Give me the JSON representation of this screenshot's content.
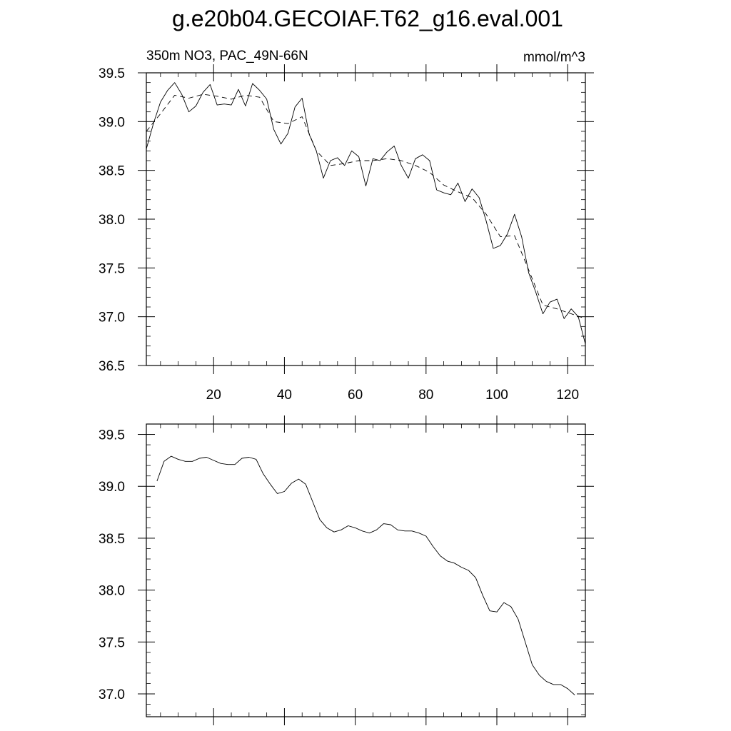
{
  "title": "g.e20b04.GECOIAF.T62_g16.eval.001",
  "chart_data": [
    {
      "type": "line",
      "subtitle_left": "350m NO3, PAC_49N-66N",
      "subtitle_right": "mmol/m^3",
      "xlim": [
        1,
        125
      ],
      "ylim": [
        36.5,
        39.5
      ],
      "x_ticks": [
        20,
        40,
        60,
        80,
        100,
        120
      ],
      "x_tick_labels": [
        "20",
        "40",
        "60",
        "80",
        "100",
        "120"
      ],
      "y_ticks": [
        36.5,
        37.0,
        37.5,
        38.0,
        38.5,
        39.0,
        39.5
      ],
      "y_tick_labels": [
        "36.5",
        "37.0",
        "37.5",
        "38.0",
        "38.5",
        "39.0",
        "39.5"
      ],
      "grid": false,
      "series": [
        {
          "style": "solid",
          "x": [
            1,
            3,
            5,
            7,
            9,
            11,
            13,
            15,
            17,
            19,
            21,
            23,
            25,
            27,
            29,
            31,
            33,
            35,
            37,
            39,
            41,
            43,
            45,
            47,
            49,
            51,
            53,
            55,
            57,
            59,
            61,
            63,
            65,
            67,
            69,
            71,
            73,
            75,
            77,
            79,
            81,
            83,
            85,
            87,
            89,
            91,
            93,
            95,
            97,
            99,
            101,
            103,
            105,
            107,
            109,
            111,
            113,
            115,
            117,
            119,
            121,
            123,
            125
          ],
          "y": [
            38.72,
            38.98,
            39.2,
            39.32,
            39.4,
            39.28,
            39.1,
            39.16,
            39.3,
            39.38,
            39.17,
            39.18,
            39.17,
            39.33,
            39.16,
            39.39,
            39.32,
            39.23,
            38.92,
            38.77,
            38.88,
            39.15,
            39.24,
            38.87,
            38.7,
            38.42,
            38.6,
            38.63,
            38.55,
            38.7,
            38.64,
            38.34,
            38.62,
            38.6,
            38.69,
            38.75,
            38.55,
            38.42,
            38.62,
            38.66,
            38.6,
            38.3,
            38.27,
            38.25,
            38.37,
            38.18,
            38.31,
            38.22,
            37.98,
            37.7,
            37.73,
            37.85,
            38.05,
            37.82,
            37.45,
            37.25,
            37.03,
            37.15,
            37.18,
            36.98,
            37.08,
            37.0,
            36.72
          ]
        },
        {
          "style": "dashed",
          "x": [
            1,
            5,
            9,
            13,
            17,
            21,
            25,
            29,
            33,
            37,
            41,
            45,
            49,
            53,
            57,
            61,
            65,
            69,
            73,
            77,
            81,
            85,
            89,
            93,
            97,
            101,
            105,
            109,
            113,
            117,
            121,
            125
          ],
          "y": [
            38.9,
            39.08,
            39.27,
            39.24,
            39.28,
            39.26,
            39.23,
            39.27,
            39.25,
            39.0,
            38.98,
            39.05,
            38.7,
            38.55,
            38.57,
            38.6,
            38.6,
            38.62,
            38.6,
            38.55,
            38.48,
            38.35,
            38.28,
            38.22,
            38.05,
            37.82,
            37.83,
            37.48,
            37.12,
            37.08,
            37.03,
            36.98
          ]
        }
      ]
    },
    {
      "type": "line",
      "xlim": [
        1,
        125
      ],
      "ylim": [
        36.78,
        39.6
      ],
      "x_ticks": [
        20,
        40,
        60,
        80,
        100,
        120
      ],
      "y_ticks": [
        37.0,
        37.5,
        38.0,
        38.5,
        39.0,
        39.5
      ],
      "y_tick_labels": [
        "37.0",
        "37.5",
        "38.0",
        "38.5",
        "39.0",
        "39.5"
      ],
      "grid": false,
      "series": [
        {
          "style": "solid",
          "x": [
            4,
            6,
            8,
            10,
            12,
            14,
            16,
            18,
            20,
            22,
            24,
            26,
            28,
            30,
            32,
            34,
            36,
            38,
            40,
            42,
            44,
            46,
            48,
            50,
            52,
            54,
            56,
            58,
            60,
            62,
            64,
            66,
            68,
            70,
            72,
            74,
            76,
            78,
            80,
            82,
            84,
            86,
            88,
            90,
            92,
            94,
            96,
            98,
            100,
            102,
            104,
            106,
            108,
            110,
            112,
            114,
            116,
            118,
            120,
            122
          ],
          "y": [
            39.05,
            39.24,
            39.29,
            39.26,
            39.24,
            39.24,
            39.27,
            39.28,
            39.25,
            39.22,
            39.21,
            39.21,
            39.27,
            39.28,
            39.26,
            39.12,
            39.02,
            38.93,
            38.95,
            39.03,
            39.07,
            39.02,
            38.85,
            38.68,
            38.6,
            38.56,
            38.58,
            38.62,
            38.6,
            38.57,
            38.55,
            38.58,
            38.64,
            38.63,
            38.58,
            38.57,
            38.57,
            38.55,
            38.52,
            38.42,
            38.33,
            38.28,
            38.26,
            38.22,
            38.19,
            38.12,
            37.95,
            37.8,
            37.79,
            37.88,
            37.84,
            37.72,
            37.5,
            37.28,
            37.18,
            37.12,
            37.09,
            37.09,
            37.05,
            36.99
          ]
        }
      ]
    }
  ]
}
